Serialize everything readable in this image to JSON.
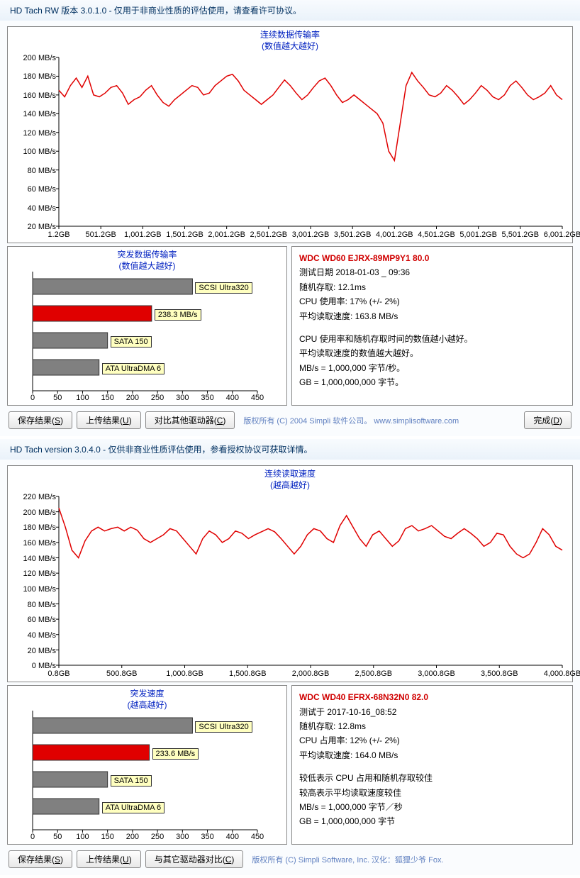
{
  "panels": [
    {
      "title": "HD Tach RW 版本 3.0.1.0  - 仅用于非商业性质的评估使用，请查看许可协议。",
      "line_chart": {
        "title_line1": "连续数据传输率",
        "title_line2": "(数值越大越好)",
        "ylabel_unit": " MB/s",
        "ylim": [
          20,
          200
        ],
        "ytick_step": 20,
        "xticks": [
          "1.2GB",
          "501.2GB",
          "1,001.2GB",
          "1,501.2GB",
          "2,001.2GB",
          "2,501.2GB",
          "3,001.2GB",
          "3,501.2GB",
          "4,001.2GB",
          "4,501.2GB",
          "5,001.2GB",
          "5,501.2GB",
          "6,001.2GB"
        ],
        "line_color": "#e00000",
        "data_y": [
          165,
          158,
          170,
          178,
          168,
          180,
          160,
          158,
          162,
          168,
          170,
          162,
          150,
          155,
          158,
          165,
          170,
          160,
          152,
          148,
          155,
          160,
          165,
          170,
          168,
          160,
          162,
          170,
          175,
          180,
          182,
          175,
          165,
          160,
          155,
          150,
          155,
          160,
          168,
          176,
          170,
          162,
          155,
          160,
          168,
          175,
          178,
          170,
          160,
          152,
          155,
          160,
          155,
          150,
          145,
          140,
          130,
          100,
          90,
          130,
          170,
          184,
          175,
          168,
          160,
          158,
          162,
          170,
          165,
          158,
          150,
          155,
          162,
          170,
          165,
          158,
          155,
          160,
          170,
          175,
          168,
          160,
          155,
          158,
          162,
          170,
          160,
          155
        ]
      },
      "burst": {
        "title_line1": "突发数据传输率",
        "title_line2": "(数值越大越好)",
        "xlim": [
          0,
          450
        ],
        "xtick_step": 50,
        "bars": [
          {
            "value": 320,
            "label": "SCSI Ultra320",
            "color": "#808080"
          },
          {
            "value": 238.3,
            "label": "238.3 MB/s",
            "color": "#e00000"
          },
          {
            "value": 150,
            "label": "SATA 150",
            "color": "#808080"
          },
          {
            "value": 133,
            "label": "ATA UltraDMA 6",
            "color": "#808080"
          }
        ]
      },
      "info": {
        "drive": "WDC WD60 EJRX-89MP9Y1 80.0",
        "lines": [
          "测试日期 2018-01-03 _ 09:36",
          "随机存取: 12.1ms",
          "CPU 使用率: 17% (+/- 2%)",
          "平均读取速度: 163.8 MB/s",
          "",
          "CPU 使用率和随机存取时间的数值越小越好。",
          "平均读取速度的数值越大越好。",
          "MB/s = 1,000,000 字节/秒。",
          "GB = 1,000,000,000 字节。"
        ]
      },
      "buttons": {
        "save": "保存结果(S)",
        "upload": "上传结果(U)",
        "compare": "对比其他驱动器(C)",
        "done": "完成(D)"
      },
      "copyright": "版权所有 (C) 2004 Simpli 软件公司。 www.simplisoftware.com"
    },
    {
      "title": "HD Tach version 3.0.4.0  - 仅供非商业性质评估使用，参看授权协议可获取详情。",
      "line_chart": {
        "title_line1": "连续读取速度",
        "title_line2": "(越高越好)",
        "ylabel_unit": " MB/s",
        "ylim": [
          0,
          220
        ],
        "ytick_step": 20,
        "xticks": [
          "0.8GB",
          "500.8GB",
          "1,000.8GB",
          "1,500.8GB",
          "2,000.8GB",
          "2,500.8GB",
          "3,000.8GB",
          "3,500.8GB",
          "4,000.8GB"
        ],
        "line_color": "#e00000",
        "data_y": [
          205,
          180,
          150,
          140,
          162,
          175,
          180,
          175,
          178,
          180,
          175,
          180,
          176,
          165,
          160,
          165,
          170,
          178,
          175,
          165,
          155,
          145,
          165,
          175,
          170,
          160,
          165,
          175,
          172,
          165,
          170,
          174,
          178,
          174,
          165,
          155,
          145,
          155,
          170,
          178,
          175,
          165,
          160,
          182,
          195,
          180,
          165,
          155,
          170,
          175,
          165,
          155,
          162,
          178,
          182,
          175,
          178,
          182,
          175,
          168,
          165,
          172,
          178,
          172,
          165,
          155,
          160,
          172,
          170,
          155,
          145,
          140,
          145,
          160,
          178,
          170,
          155,
          150
        ]
      },
      "burst": {
        "title_line1": "突发速度",
        "title_line2": "(越高越好)",
        "xlim": [
          0,
          450
        ],
        "xtick_step": 50,
        "bars": [
          {
            "value": 320,
            "label": "SCSI Ultra320",
            "color": "#808080"
          },
          {
            "value": 233.6,
            "label": "233.6 MB/s",
            "color": "#e00000"
          },
          {
            "value": 150,
            "label": "SATA 150",
            "color": "#808080"
          },
          {
            "value": 133,
            "label": "ATA UltraDMA 6",
            "color": "#808080"
          }
        ]
      },
      "info": {
        "drive": "WDC WD40 EFRX-68N32N0 82.0",
        "lines": [
          "测试于 2017-10-16_08:52",
          "随机存取: 12.8ms",
          "CPU 占用率: 12% (+/- 2%)",
          "平均读取速度: 164.0 MB/s",
          "",
          "较低表示 CPU 占用和随机存取较佳",
          "较高表示平均读取速度较佳",
          "MB/s = 1,000,000 字节／秒",
          "GB = 1,000,000,000 字节"
        ]
      },
      "buttons": {
        "save": "保存结果(S)",
        "upload": "上传结果(U)",
        "compare": "与其它驱动器对比(C)",
        "done": ""
      },
      "copyright": "版权所有 (C) Simpli Software, Inc. 汉化：狐狸少爷 Fox."
    }
  ],
  "colors": {
    "title_text": "#0020c0",
    "axis": "#000000",
    "bar_label_bg": "#ffffc0"
  }
}
